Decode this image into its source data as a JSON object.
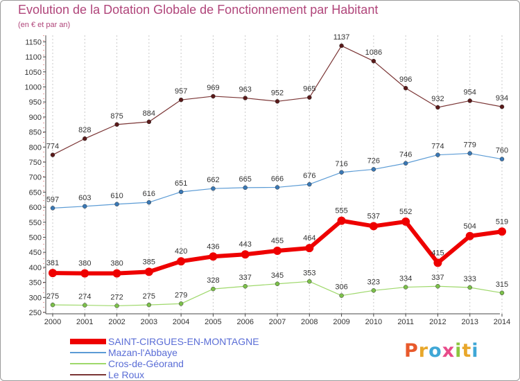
{
  "title": "Evolution de la Dotation Globale de Fonctionnement par Habitant",
  "subtitle": "(en € et par an)",
  "logo": {
    "text": "Proxiti",
    "colors": [
      "#e8592b",
      "#e8a72b",
      "#3fa7d6",
      "#e84b8a",
      "#8cc63f",
      "#e8a72b",
      "#3fa7d6"
    ]
  },
  "chart_data": {
    "type": "line",
    "x": [
      "2000",
      "2001",
      "2002",
      "2003",
      "2004",
      "2005",
      "2006",
      "2007",
      "2008",
      "2009",
      "2010",
      "2011",
      "2012",
      "2013",
      "2014"
    ],
    "ylim": [
      250,
      1150
    ],
    "yticks": [
      250,
      300,
      350,
      400,
      450,
      500,
      550,
      600,
      650,
      700,
      750,
      800,
      850,
      900,
      950,
      1000,
      1050,
      1100,
      1150
    ],
    "grid": "vertical-dotted",
    "legend_position": "bottom-left",
    "series": [
      {
        "name": "Le Roux",
        "color": "#7a3434",
        "marker": "#5a1a1a",
        "width": 1.2,
        "values": [
          774,
          828,
          875,
          884,
          957,
          969,
          963,
          952,
          965,
          1137,
          1086,
          996,
          932,
          954,
          934
        ]
      },
      {
        "name": "Mazan-l'Abbaye",
        "color": "#5b9bd5",
        "marker": "#3a78b5",
        "width": 1.2,
        "values": [
          597,
          603,
          610,
          616,
          651,
          662,
          665,
          666,
          676,
          716,
          726,
          746,
          774,
          779,
          760
        ]
      },
      {
        "name": "Cros-de-Géorand",
        "color": "#9ed86a",
        "marker": "#7cc04a",
        "width": 1.2,
        "values": [
          275,
          274,
          272,
          275,
          279,
          328,
          337,
          345,
          353,
          306,
          323,
          334,
          337,
          333,
          315
        ]
      },
      {
        "name": "SAINT-CIRGUES-EN-MONTAGNE",
        "color": "#ee0000",
        "marker": "#ee0000",
        "width": 6,
        "values": [
          381,
          380,
          380,
          385,
          420,
          436,
          443,
          455,
          464,
          555,
          537,
          552,
          415,
          504,
          519
        ]
      }
    ],
    "legend": [
      {
        "name": "SAINT-CIRGUES-EN-MONTAGNE",
        "color": "#ee0000",
        "width": 8
      },
      {
        "name": "Mazan-l'Abbaye",
        "color": "#5b9bd5",
        "width": 2
      },
      {
        "name": "Cros-de-Géorand",
        "color": "#9ed86a",
        "width": 2
      },
      {
        "name": "Le Roux",
        "color": "#7a3434",
        "width": 2
      }
    ]
  }
}
